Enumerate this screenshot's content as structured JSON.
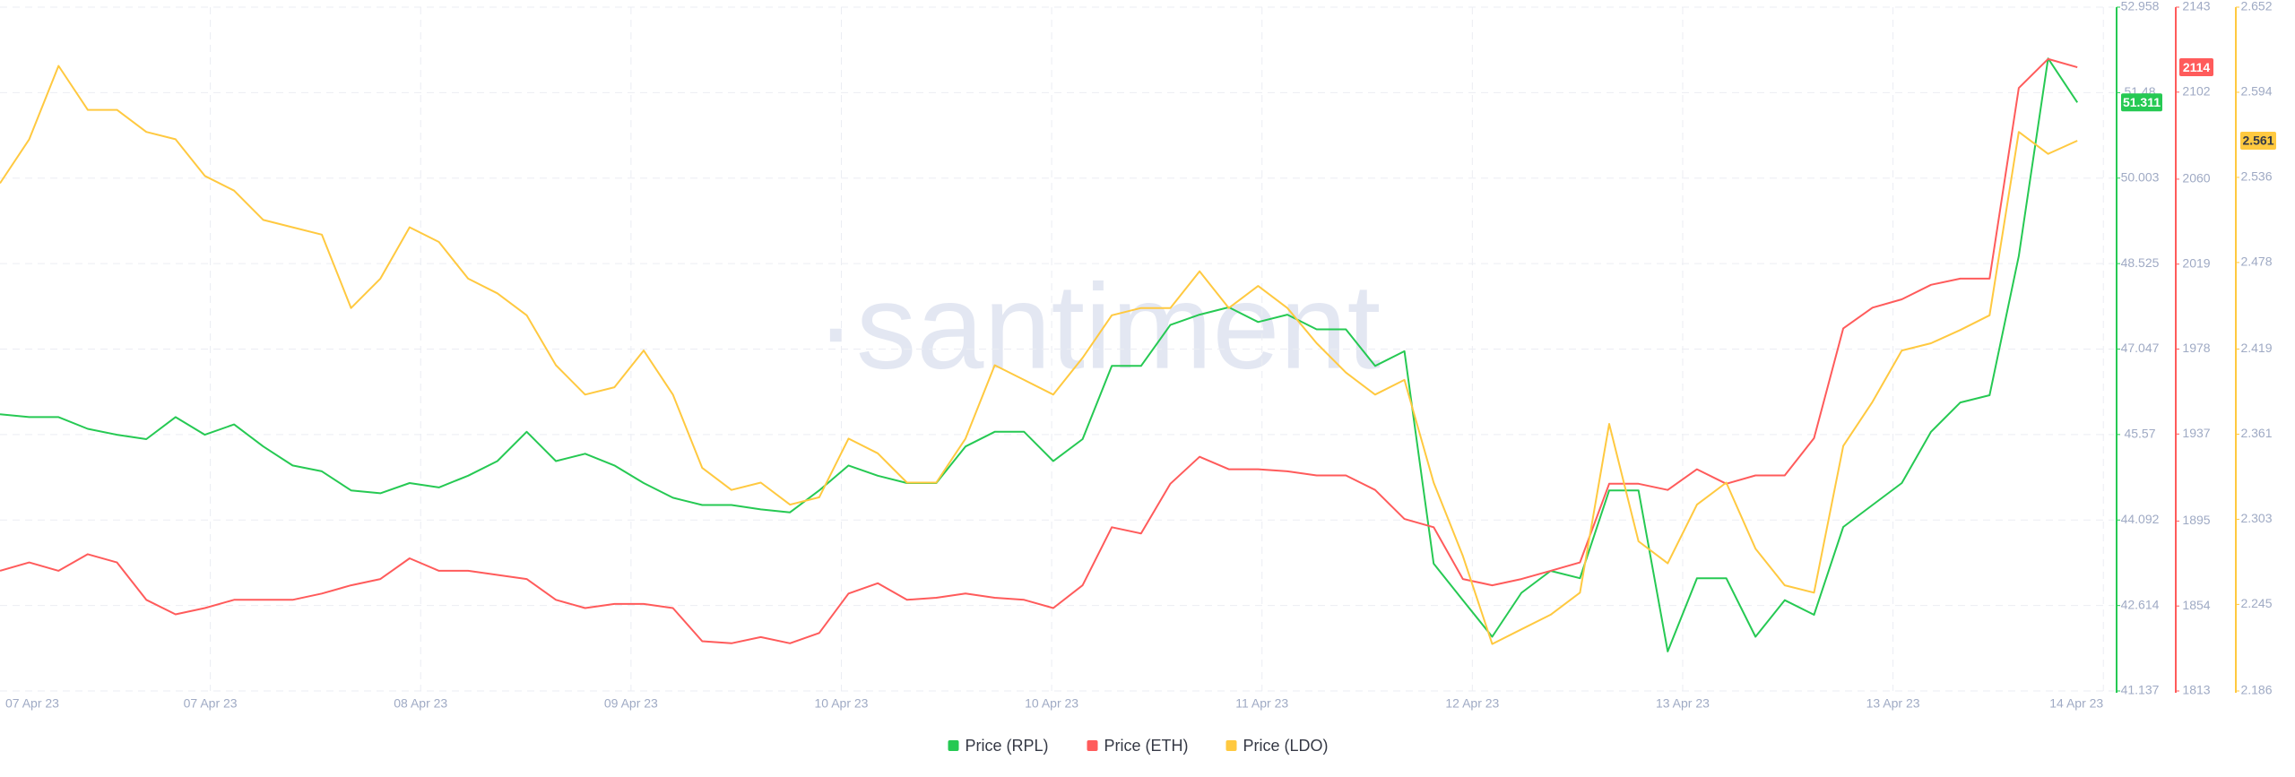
{
  "chart_data": {
    "type": "line",
    "watermark": "·santiment",
    "x_tick_labels": [
      "07 Apr 23",
      "07 Apr 23",
      "08 Apr 23",
      "09 Apr 23",
      "10 Apr 23",
      "10 Apr 23",
      "11 Apr 23",
      "12 Apr 23",
      "13 Apr 23",
      "13 Apr 23",
      "14 Apr 23"
    ],
    "grid": true,
    "ylim": [
      41.137,
      52.958
    ],
    "yticks": [
      41.137,
      42.614,
      44.092,
      45.57,
      47.047,
      48.525,
      50.003,
      51.48,
      52.958
    ],
    "y2lim": [
      1813,
      2143
    ],
    "y2ticks": [
      1813,
      1854,
      1895,
      1937,
      1978,
      2019,
      2060,
      2102,
      2143
    ],
    "y3lim": [
      2.186,
      2.652
    ],
    "y3ticks": [
      2.186,
      2.245,
      2.303,
      2.361,
      2.419,
      2.478,
      2.536,
      2.594,
      2.652
    ],
    "series": [
      {
        "name": "Price (RPL)",
        "color": "#26c953",
        "axis": "y",
        "last_value_label": "51.311",
        "values": [
          45.921,
          45.871,
          45.871,
          45.668,
          45.567,
          45.491,
          45.871,
          45.567,
          45.744,
          45.364,
          45.035,
          44.934,
          44.605,
          44.554,
          44.732,
          44.656,
          44.858,
          45.111,
          45.618,
          45.111,
          45.238,
          45.035,
          44.732,
          44.478,
          44.352,
          44.352,
          44.276,
          44.225,
          44.605,
          45.035,
          44.858,
          44.732,
          44.732,
          45.364,
          45.618,
          45.618,
          45.111,
          45.491,
          46.757,
          46.757,
          47.465,
          47.642,
          47.769,
          47.516,
          47.642,
          47.389,
          47.389,
          46.757,
          47.01,
          43.339,
          42.707,
          42.074,
          42.833,
          43.213,
          43.086,
          44.605,
          44.605,
          41.821,
          43.086,
          43.086,
          42.074,
          42.707,
          42.454,
          43.972,
          44.352,
          44.732,
          45.618,
          46.124,
          46.25,
          48.655,
          52.072,
          51.311
        ]
      },
      {
        "name": "Price (ETH)",
        "color": "#ff5b5b",
        "axis": "y2",
        "last_value_label": "2114",
        "values": [
          1871,
          1875,
          1871,
          1879,
          1875,
          1857,
          1850,
          1853,
          1857,
          1857,
          1857,
          1860,
          1864,
          1867,
          1877,
          1871,
          1871,
          1869,
          1867,
          1857,
          1853,
          1855,
          1855,
          1853,
          1837,
          1836,
          1839,
          1836,
          1841,
          1860,
          1865,
          1857,
          1858,
          1860,
          1858,
          1857,
          1853,
          1864,
          1892,
          1889,
          1913,
          1926,
          1920,
          1920,
          1919,
          1917,
          1917,
          1910,
          1896,
          1892,
          1867,
          1864,
          1867,
          1871,
          1875,
          1913,
          1913,
          1910,
          1920,
          1913,
          1917,
          1917,
          1935,
          1988,
          1998,
          2002,
          2009,
          2012,
          2012,
          2104,
          2118,
          2114
        ]
      },
      {
        "name": "Price (LDO)",
        "color": "#ffc940",
        "axis": "y3",
        "last_value_label": "2.561",
        "values": [
          2.532,
          2.562,
          2.612,
          2.582,
          2.582,
          2.567,
          2.562,
          2.537,
          2.527,
          2.507,
          2.502,
          2.497,
          2.447,
          2.467,
          2.502,
          2.492,
          2.467,
          2.457,
          2.442,
          2.408,
          2.388,
          2.393,
          2.418,
          2.388,
          2.338,
          2.323,
          2.328,
          2.313,
          2.318,
          2.358,
          2.348,
          2.328,
          2.328,
          2.358,
          2.408,
          2.398,
          2.388,
          2.413,
          2.442,
          2.447,
          2.447,
          2.472,
          2.447,
          2.462,
          2.447,
          2.423,
          2.403,
          2.388,
          2.398,
          2.328,
          2.278,
          2.218,
          2.228,
          2.238,
          2.253,
          2.368,
          2.288,
          2.273,
          2.313,
          2.328,
          2.283,
          2.258,
          2.253,
          2.353,
          2.383,
          2.418,
          2.423,
          2.432,
          2.442,
          2.567,
          2.552,
          2.561
        ]
      }
    ]
  }
}
